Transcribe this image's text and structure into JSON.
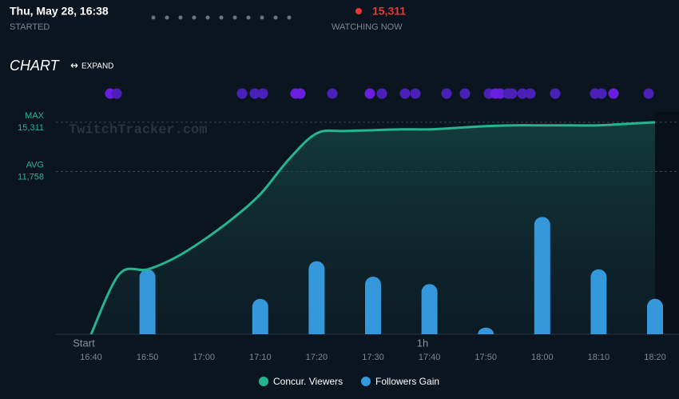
{
  "header": {
    "started": "Thu, May 28, 16:38",
    "started_label": "STARTED",
    "watching": "15,311",
    "watching_label": "WATCHING NOW"
  },
  "section": {
    "title": "CHART",
    "expand": "EXPAND"
  },
  "chart_data": {
    "type": "line-bar",
    "watermark": "TwitchTracker.com",
    "start_label": "Start",
    "hour_label": "1h",
    "categories": [
      "16:40",
      null,
      "16:50",
      null,
      "17:00",
      null,
      "17:10",
      null,
      "17:20",
      null,
      "17:30",
      null,
      "17:40",
      null,
      "17:50",
      null,
      "18:00",
      null,
      "18:10",
      null,
      "18:20"
    ],
    "series": [
      {
        "name": "Concur. Viewers",
        "color": "#26b48f",
        "type": "line",
        "values": [
          0,
          4335,
          4680,
          5550,
          6820,
          8320,
          10110,
          12600,
          14510,
          14680,
          14740,
          14800,
          14800,
          14910,
          15030,
          15090,
          15090,
          15090,
          15090,
          15200,
          15311
        ]
      },
      {
        "name": "Followers Gain",
        "color": "#3498db",
        "type": "bar",
        "axis": "y2",
        "values": [
          null,
          null,
          88,
          null,
          null,
          null,
          48,
          null,
          99,
          null,
          78,
          null,
          68,
          null,
          9,
          null,
          159,
          null,
          88,
          null,
          48
        ]
      }
    ],
    "ylim": [
      0,
      16000
    ],
    "y2lim": [
      0,
      300
    ],
    "reference_lines": [
      {
        "name": "MAX",
        "value": 15311,
        "label": "15,311"
      },
      {
        "name": "AVG",
        "value": 11758,
        "label": "11,758"
      }
    ]
  }
}
